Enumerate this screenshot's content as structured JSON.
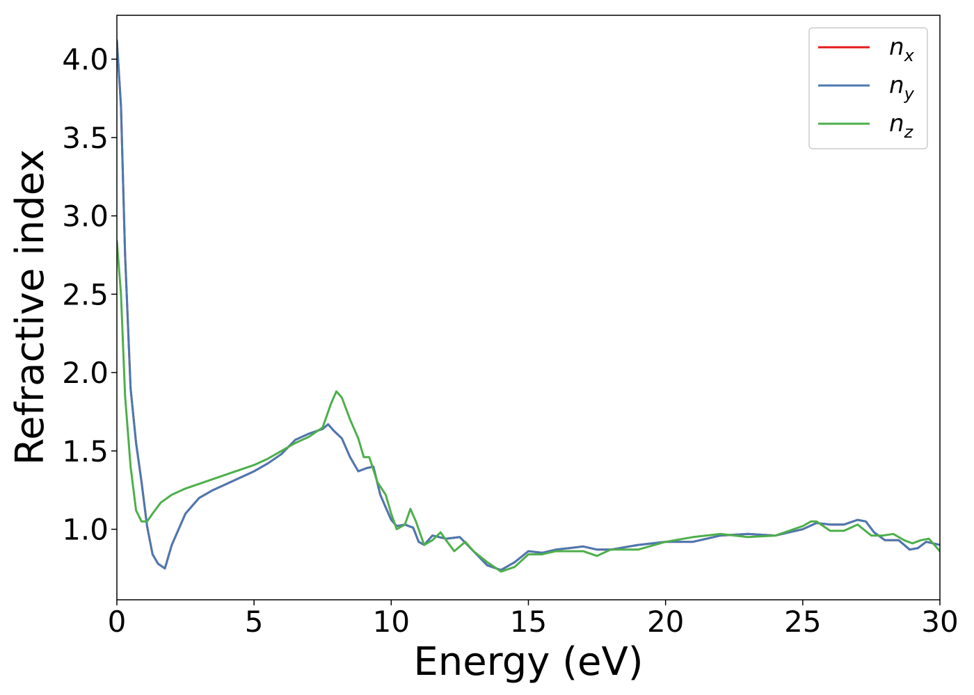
{
  "chart_data": {
    "type": "line",
    "title": "",
    "xlabel": "Energy (eV)",
    "ylabel": "Refractive index",
    "xlim": [
      0,
      30
    ],
    "ylim": [
      0.55,
      4.28
    ],
    "xticks": [
      0,
      5,
      10,
      15,
      20,
      25,
      30
    ],
    "xtick_labels": [
      "0",
      "5",
      "10",
      "15",
      "20",
      "25",
      "30"
    ],
    "yticks": [
      1.0,
      1.5,
      2.0,
      2.5,
      3.0,
      3.5,
      4.0
    ],
    "ytick_labels": [
      "1.0",
      "1.5",
      "2.0",
      "2.5",
      "3.0",
      "3.5",
      "4.0"
    ],
    "grid": false,
    "legend_position": "top-right",
    "series": [
      {
        "name": "n_x",
        "label_base": "n",
        "label_sub": "x",
        "color": "#e41a1c",
        "x": [
          0,
          0.15,
          0.3,
          0.5,
          0.7,
          0.9,
          1.1,
          1.3,
          1.5,
          1.75,
          2.0,
          2.5,
          3.0,
          3.5,
          4.0,
          5.0,
          5.5,
          6.0,
          6.5,
          7.0,
          7.5,
          7.7,
          7.9,
          8.2,
          8.5,
          8.8,
          9.1,
          9.35,
          9.6,
          9.8,
          10.0,
          10.2,
          10.5,
          10.8,
          11.0,
          11.2,
          11.5,
          12.0,
          12.5,
          13.0,
          13.5,
          14.0,
          14.5,
          15.0,
          15.5,
          16.0,
          16.5,
          17.0,
          17.5,
          18.0,
          19.0,
          20.0,
          20.5,
          21.0,
          22.0,
          23.0,
          24.0,
          25.0,
          25.5,
          26.0,
          26.5,
          27.0,
          27.3,
          27.6,
          28.0,
          28.5,
          28.9,
          29.2,
          29.5,
          30.0
        ],
        "values": [
          4.12,
          3.7,
          2.75,
          1.9,
          1.55,
          1.3,
          1.02,
          0.84,
          0.78,
          0.75,
          0.9,
          1.1,
          1.2,
          1.25,
          1.29,
          1.37,
          1.42,
          1.48,
          1.57,
          1.61,
          1.64,
          1.67,
          1.63,
          1.58,
          1.46,
          1.37,
          1.39,
          1.4,
          1.22,
          1.14,
          1.06,
          1.02,
          1.03,
          1.01,
          0.92,
          0.9,
          0.96,
          0.94,
          0.95,
          0.86,
          0.77,
          0.74,
          0.79,
          0.86,
          0.85,
          0.87,
          0.88,
          0.89,
          0.87,
          0.87,
          0.9,
          0.92,
          0.92,
          0.92,
          0.96,
          0.97,
          0.96,
          1.0,
          1.04,
          1.03,
          1.03,
          1.06,
          1.05,
          0.98,
          0.93,
          0.93,
          0.87,
          0.88,
          0.92,
          0.9
        ]
      },
      {
        "name": "n_y",
        "label_base": "n",
        "label_sub": "y",
        "color": "#4a79b2",
        "x": [
          0,
          0.15,
          0.3,
          0.5,
          0.7,
          0.9,
          1.1,
          1.3,
          1.5,
          1.75,
          2.0,
          2.5,
          3.0,
          3.5,
          4.0,
          5.0,
          5.5,
          6.0,
          6.5,
          7.0,
          7.5,
          7.7,
          7.9,
          8.2,
          8.5,
          8.8,
          9.1,
          9.35,
          9.6,
          9.8,
          10.0,
          10.2,
          10.5,
          10.8,
          11.0,
          11.2,
          11.5,
          12.0,
          12.5,
          13.0,
          13.5,
          14.0,
          14.5,
          15.0,
          15.5,
          16.0,
          16.5,
          17.0,
          17.5,
          18.0,
          19.0,
          20.0,
          20.5,
          21.0,
          22.0,
          23.0,
          24.0,
          25.0,
          25.5,
          26.0,
          26.5,
          27.0,
          27.3,
          27.6,
          28.0,
          28.5,
          28.9,
          29.2,
          29.5,
          30.0
        ],
        "values": [
          4.12,
          3.7,
          2.75,
          1.9,
          1.55,
          1.3,
          1.02,
          0.84,
          0.78,
          0.75,
          0.9,
          1.1,
          1.2,
          1.25,
          1.29,
          1.37,
          1.42,
          1.48,
          1.57,
          1.61,
          1.64,
          1.67,
          1.63,
          1.58,
          1.46,
          1.37,
          1.39,
          1.4,
          1.22,
          1.14,
          1.06,
          1.02,
          1.03,
          1.01,
          0.92,
          0.9,
          0.96,
          0.94,
          0.95,
          0.86,
          0.77,
          0.74,
          0.79,
          0.86,
          0.85,
          0.87,
          0.88,
          0.89,
          0.87,
          0.87,
          0.9,
          0.92,
          0.92,
          0.92,
          0.96,
          0.97,
          0.96,
          1.0,
          1.04,
          1.03,
          1.03,
          1.06,
          1.05,
          0.98,
          0.93,
          0.93,
          0.87,
          0.88,
          0.92,
          0.9
        ]
      },
      {
        "name": "n_z",
        "label_base": "n",
        "label_sub": "z",
        "color": "#4daf4a",
        "x": [
          0,
          0.15,
          0.3,
          0.5,
          0.7,
          0.9,
          1.1,
          1.3,
          1.6,
          2.0,
          2.5,
          3.0,
          4.0,
          5.0,
          5.5,
          6.0,
          6.5,
          7.0,
          7.5,
          7.8,
          8.0,
          8.2,
          8.5,
          8.8,
          9.0,
          9.2,
          9.5,
          9.8,
          10.0,
          10.2,
          10.5,
          10.7,
          10.9,
          11.2,
          11.5,
          11.8,
          12.0,
          12.3,
          12.7,
          13.0,
          13.5,
          14.0,
          14.5,
          15.0,
          15.5,
          16.0,
          16.5,
          17.0,
          17.5,
          18.0,
          19.0,
          20.0,
          21.0,
          22.0,
          23.0,
          24.0,
          25.0,
          25.3,
          25.5,
          26.0,
          26.5,
          27.0,
          27.5,
          27.9,
          28.3,
          28.7,
          29.0,
          29.3,
          29.6,
          30.0
        ],
        "values": [
          2.84,
          2.5,
          1.85,
          1.4,
          1.12,
          1.05,
          1.05,
          1.1,
          1.17,
          1.22,
          1.26,
          1.29,
          1.35,
          1.41,
          1.45,
          1.5,
          1.55,
          1.59,
          1.65,
          1.8,
          1.88,
          1.84,
          1.7,
          1.58,
          1.46,
          1.46,
          1.3,
          1.22,
          1.1,
          1.0,
          1.03,
          1.13,
          1.05,
          0.9,
          0.93,
          0.98,
          0.93,
          0.86,
          0.92,
          0.86,
          0.79,
          0.73,
          0.76,
          0.84,
          0.84,
          0.86,
          0.86,
          0.86,
          0.83,
          0.87,
          0.87,
          0.92,
          0.95,
          0.97,
          0.95,
          0.96,
          1.02,
          1.05,
          1.05,
          0.99,
          0.99,
          1.03,
          0.96,
          0.96,
          0.97,
          0.93,
          0.91,
          0.93,
          0.94,
          0.86
        ]
      }
    ]
  }
}
